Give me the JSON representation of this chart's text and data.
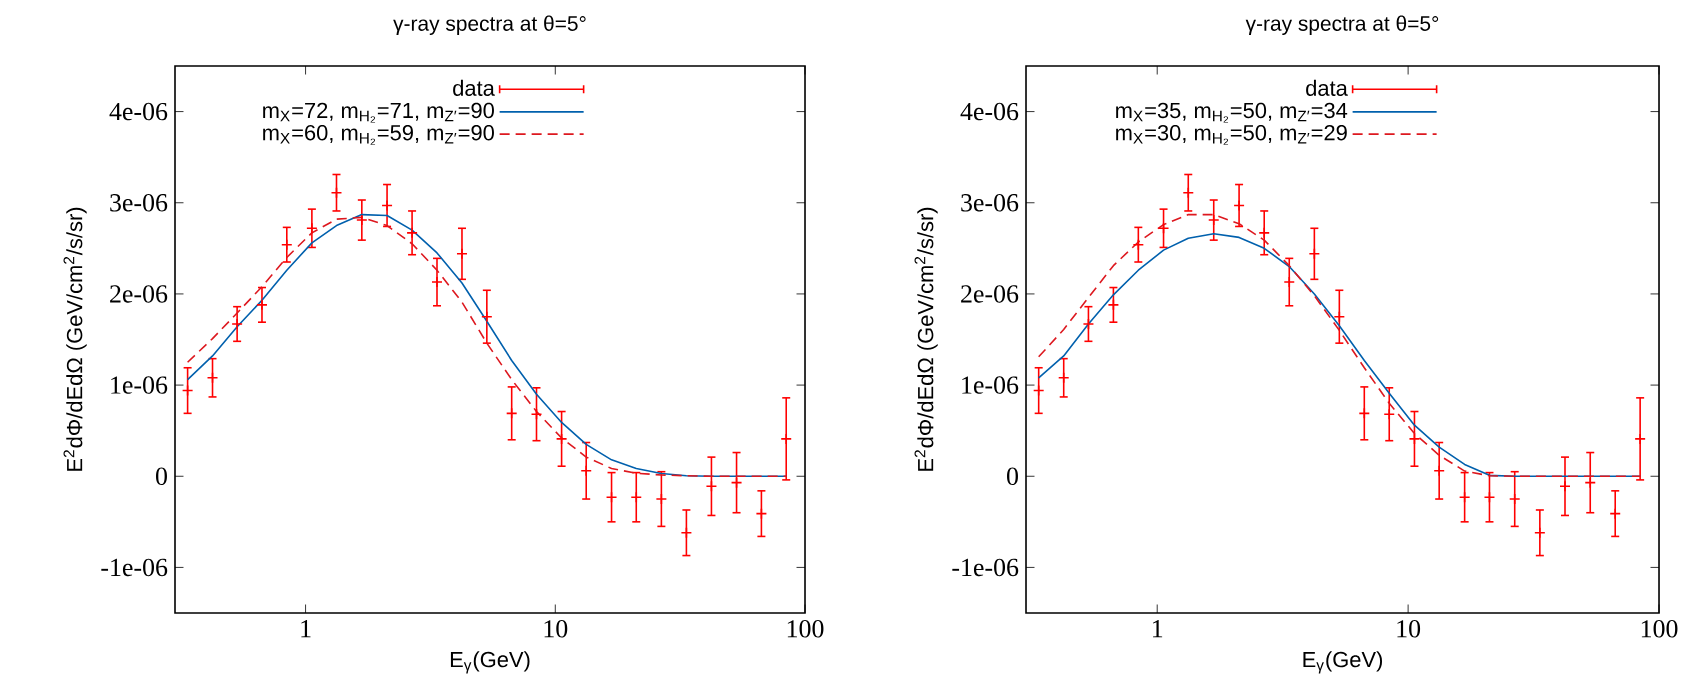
{
  "chart_data": [
    {
      "type": "line",
      "title": "γ-ray spectra at θ=5°",
      "xlabel": "E$_{γ}$(GeV)",
      "ylabel": "E$^{2}$dΦ/dEdΩ (GeV/cm$^{2}$/s/sr)",
      "log": "x",
      "legend": "top",
      "grid": false,
      "xlim": [
        0.3,
        100
      ],
      "xticks": [
        1,
        10,
        100
      ],
      "ylim": [
        -1.5e-06,
        4.5e-06
      ],
      "yticks": [
        {
          "value": -1e-06,
          "label": "-1e-06"
        },
        {
          "value": 0,
          "label": "0"
        },
        {
          "value": 1e-06,
          "label": "1e-06"
        },
        {
          "value": 2e-06,
          "label": "2e-06"
        },
        {
          "value": 3e-06,
          "label": "3e-06"
        },
        {
          "value": 4e-06,
          "label": "4e-06"
        }
      ],
      "x": [
        0.337,
        0.424,
        0.532,
        0.669,
        0.841,
        1.06,
        1.33,
        1.68,
        2.12,
        2.67,
        3.36,
        4.23,
        5.32,
        6.69,
        8.41,
        10.6,
        13.3,
        16.8,
        21.1,
        26.6,
        33.5,
        42.2,
        53.2,
        66.9,
        84.1
      ],
      "series": [
        {
          "name": "data",
          "type": "scatter",
          "marker": "cross",
          "color": "#ff0000",
          "values": [
            9.4e-07,
            1.08e-06,
            1.67e-06,
            1.88e-06,
            2.54e-06,
            2.72e-06,
            3.11e-06,
            2.81e-06,
            2.97e-06,
            2.67e-06,
            2.13e-06,
            2.44e-06,
            1.75e-06,
            6.9e-07,
            6.8e-07,
            4.1e-07,
            6e-08,
            -2.3e-07,
            -2.3e-07,
            -2.5e-07,
            -6.2e-07,
            -1.1e-07,
            -7e-08,
            -4.1e-07,
            4.1e-07
          ],
          "errors": [
            2.5e-07,
            2.1e-07,
            1.9e-07,
            1.9e-07,
            1.9e-07,
            2.1e-07,
            2e-07,
            2.2e-07,
            2.3e-07,
            2.4e-07,
            2.6e-07,
            2.8e-07,
            2.9e-07,
            2.9e-07,
            2.9e-07,
            3e-07,
            3.1e-07,
            2.7e-07,
            2.7e-07,
            3e-07,
            2.5e-07,
            3.2e-07,
            3.3e-07,
            2.5e-07,
            4.5e-07
          ]
        },
        {
          "name": "m$_{X}$=72, m$_{H₂}$=71, m$_{Z′}$=90",
          "color": "#0060ad",
          "line_style": "solid",
          "values": [
            1.06e-06,
            1.32e-06,
            1.64e-06,
            1.93e-06,
            2.26e-06,
            2.56e-06,
            2.75e-06,
            2.87e-06,
            2.86e-06,
            2.7e-06,
            2.45e-06,
            2.12e-06,
            1.7e-06,
            1.27e-06,
            9e-07,
            5.9e-07,
            3.5e-07,
            1.8e-07,
            8.5e-08,
            3e-08,
            5e-09,
            0,
            0,
            0,
            0
          ]
        },
        {
          "name": "m$_{X}$=60, m$_{H₂}$=59, m$_{Z′}$=90",
          "color": "#dd181f",
          "line_style": "dashed",
          "values": [
            1.25e-06,
            1.51e-06,
            1.79e-06,
            2.08e-06,
            2.4e-06,
            2.67e-06,
            2.82e-06,
            2.84e-06,
            2.75e-06,
            2.55e-06,
            2.26e-06,
            1.91e-06,
            1.46e-06,
            1.06e-06,
            7.1e-07,
            4.2e-07,
            2.1e-07,
            8.5e-08,
            3.3e-08,
            1.4e-08,
            5e-09,
            0,
            0,
            0,
            0
          ]
        }
      ]
    },
    {
      "type": "line",
      "title": "γ-ray spectra at θ=5°",
      "xlabel": "E$_{γ}$(GeV)",
      "ylabel": "E$^{2}$dΦ/dEdΩ (GeV/cm$^{2}$/s/sr)",
      "log": "x",
      "legend": "top",
      "grid": false,
      "xlim": [
        0.3,
        100
      ],
      "xticks": [
        1,
        10,
        100
      ],
      "ylim": [
        -1.5e-06,
        4.5e-06
      ],
      "yticks": [
        {
          "value": -1e-06,
          "label": "-1e-06"
        },
        {
          "value": 0,
          "label": "0"
        },
        {
          "value": 1e-06,
          "label": "1e-06"
        },
        {
          "value": 2e-06,
          "label": "2e-06"
        },
        {
          "value": 3e-06,
          "label": "3e-06"
        },
        {
          "value": 4e-06,
          "label": "4e-06"
        }
      ],
      "x": [
        0.337,
        0.424,
        0.532,
        0.669,
        0.841,
        1.06,
        1.33,
        1.68,
        2.12,
        2.67,
        3.36,
        4.23,
        5.32,
        6.69,
        8.41,
        10.6,
        13.3,
        16.8,
        21.1,
        26.6,
        33.5,
        42.2,
        53.2,
        66.9,
        84.1
      ],
      "series": [
        {
          "name": "data",
          "type": "scatter",
          "marker": "cross",
          "color": "#ff0000",
          "values": [
            9.4e-07,
            1.08e-06,
            1.67e-06,
            1.88e-06,
            2.54e-06,
            2.72e-06,
            3.11e-06,
            2.81e-06,
            2.97e-06,
            2.67e-06,
            2.13e-06,
            2.44e-06,
            1.75e-06,
            6.9e-07,
            6.8e-07,
            4.1e-07,
            6e-08,
            -2.3e-07,
            -2.3e-07,
            -2.5e-07,
            -6.2e-07,
            -1.1e-07,
            -7e-08,
            -4.1e-07,
            4.1e-07
          ],
          "errors": [
            2.5e-07,
            2.1e-07,
            1.9e-07,
            1.9e-07,
            1.9e-07,
            2.1e-07,
            2e-07,
            2.2e-07,
            2.3e-07,
            2.4e-07,
            2.6e-07,
            2.8e-07,
            2.9e-07,
            2.9e-07,
            2.9e-07,
            3e-07,
            3.1e-07,
            2.7e-07,
            2.7e-07,
            3e-07,
            2.5e-07,
            3.2e-07,
            3.3e-07,
            2.5e-07,
            4.5e-07
          ]
        },
        {
          "name": "m$_{X}$=35, m$_{H₂}$=50, m$_{Z′}$=34",
          "color": "#0060ad",
          "line_style": "solid",
          "values": [
            1.08e-06,
            1.32e-06,
            1.67e-06,
            1.99e-06,
            2.26e-06,
            2.48e-06,
            2.61e-06,
            2.66e-06,
            2.62e-06,
            2.5e-06,
            2.3e-06,
            2e-06,
            1.65e-06,
            1.27e-06,
            9.1e-07,
            5.6e-07,
            3.2e-07,
            1.3e-07,
            1e-08,
            0,
            0,
            0,
            0,
            0,
            0
          ]
        },
        {
          "name": "m$_{X}$=30, m$_{H₂}$=50, m$_{Z′}$=29",
          "color": "#dd181f",
          "line_style": "dashed",
          "values": [
            1.31e-06,
            1.61e-06,
            1.96e-06,
            2.31e-06,
            2.57e-06,
            2.76e-06,
            2.87e-06,
            2.87e-06,
            2.77e-06,
            2.59e-06,
            2.31e-06,
            1.98e-06,
            1.6e-06,
            1.19e-06,
            8e-07,
            4.7e-07,
            2.3e-07,
            5.7e-08,
            5e-09,
            0,
            0,
            0,
            0,
            0,
            0
          ]
        }
      ]
    }
  ]
}
